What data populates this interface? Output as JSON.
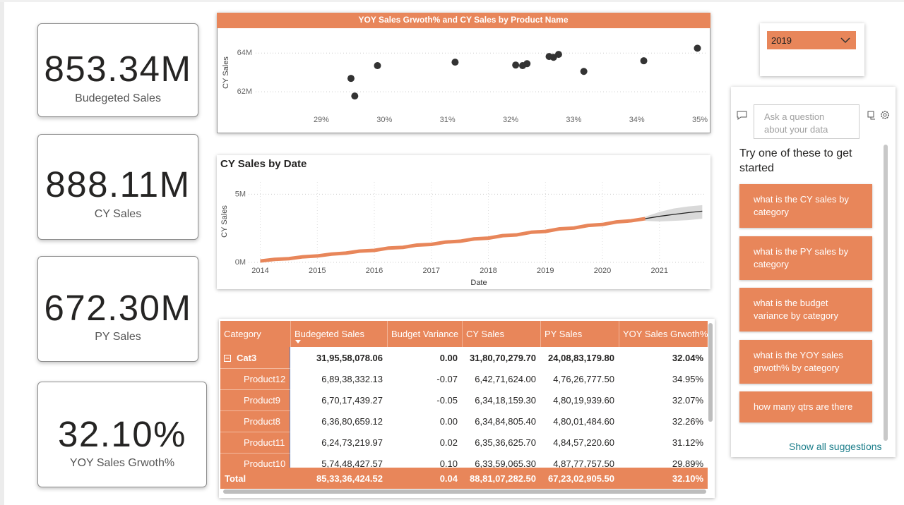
{
  "kpis": [
    {
      "value": "853.34M",
      "label": "Budegeted Sales"
    },
    {
      "value": "888.11M",
      "label": "CY Sales"
    },
    {
      "value": "672.30M",
      "label": "PY Sales"
    },
    {
      "value": "32.10%",
      "label": "YOY Sales Grwoth%"
    }
  ],
  "chart_data": [
    {
      "type": "scatter",
      "title": "YOY Sales Grwoth% and CY Sales by Product Name",
      "title_background": "#e8865a",
      "y_label": "CY Sales",
      "color": "#333333",
      "grid": true,
      "x": [
        29.47,
        29.53,
        29.89,
        31.12,
        32.08,
        32.19,
        32.26,
        32.61,
        32.68,
        32.76,
        33.16,
        34.11,
        34.96
      ],
      "values": [
        62.69,
        61.78,
        63.35,
        63.53,
        63.38,
        63.35,
        63.45,
        63.82,
        63.78,
        63.93,
        63.05,
        63.6,
        64.25
      ],
      "xlim": [
        27.4,
        35.1
      ],
      "xticks": [
        {
          "value": 29,
          "label": "29%"
        },
        {
          "value": 30,
          "label": "30%"
        },
        {
          "value": 31,
          "label": "31%"
        },
        {
          "value": 32,
          "label": "32%"
        },
        {
          "value": 33,
          "label": "33%"
        },
        {
          "value": 34,
          "label": "34%"
        },
        {
          "value": 35,
          "label": "35%"
        }
      ],
      "ylim": [
        60,
        65.1
      ],
      "yticks": [
        {
          "value": 62,
          "label": "62M"
        },
        {
          "value": 64,
          "label": "64M"
        }
      ]
    },
    {
      "type": "line",
      "title": "CY Sales by Date",
      "x_label": "Date",
      "y_label": "CY Sales",
      "color": "#e8865a",
      "grid": true,
      "x": [
        2014,
        2014.25,
        2014.5,
        2014.75,
        2015,
        2015.25,
        2015.5,
        2015.75,
        2016,
        2016.25,
        2016.5,
        2016.75,
        2017,
        2017.25,
        2017.5,
        2017.75,
        2018,
        2018.25,
        2018.5,
        2018.75,
        2019,
        2019.25,
        2019.5,
        2019.75,
        2020,
        2020.25,
        2020.5,
        2020.75
      ],
      "values": [
        0.1,
        0.22,
        0.27,
        0.41,
        0.47,
        0.61,
        0.68,
        0.83,
        0.88,
        1.05,
        1.1,
        1.27,
        1.32,
        1.49,
        1.55,
        1.72,
        1.78,
        1.96,
        2.02,
        2.21,
        2.27,
        2.46,
        2.52,
        2.71,
        2.78,
        2.97,
        3.05,
        3.21
      ],
      "forecast": {
        "color": "#222222",
        "band_color": "#cfcfcf",
        "x": [
          2020.75,
          2021,
          2021.25,
          2021.5,
          2021.75
        ],
        "values": [
          3.21,
          3.38,
          3.52,
          3.65,
          3.76
        ],
        "lower": [
          3.05,
          3.0,
          3.05,
          3.1,
          3.2
        ],
        "upper": [
          3.35,
          3.7,
          3.95,
          4.1,
          4.2
        ]
      },
      "xlim": [
        2013.3,
        2021.82
      ],
      "xticks": [
        2014,
        2015,
        2016,
        2017,
        2018,
        2019,
        2020,
        2021
      ],
      "ylim": [
        0,
        5.9
      ],
      "yticks": [
        {
          "value": 0,
          "label": "0M"
        },
        {
          "value": 5,
          "label": "5M"
        }
      ]
    }
  ],
  "table": {
    "headers": [
      "Category",
      "Budegeted Sales",
      "Budget Variance",
      "CY Sales",
      "PY Sales",
      "YOY Sales Grwoth%"
    ],
    "group": [
      "Cat3",
      "31,95,58,078.06",
      "0.00",
      "31,80,70,279.70",
      "24,08,83,179.80",
      "32.04%"
    ],
    "rows": [
      [
        "Product12",
        "6,89,38,332.13",
        "-0.07",
        "6,42,71,624.00",
        "4,76,26,777.50",
        "34.95%"
      ],
      [
        "Product9",
        "6,70,17,439.27",
        "-0.05",
        "6,34,18,159.30",
        "4,80,19,939.60",
        "32.07%"
      ],
      [
        "Product8",
        "6,36,80,659.12",
        "0.00",
        "6,34,84,805.40",
        "4,80,01,484.60",
        "32.26%"
      ],
      [
        "Product11",
        "6,24,73,219.97",
        "0.02",
        "6,35,36,625.70",
        "4,84,57,220.60",
        "31.12%"
      ],
      [
        "Product10",
        "5,74,48,427.57",
        "0.10",
        "6,33,59,065.30",
        "4,87,77,757.50",
        "29.89%"
      ]
    ],
    "total": [
      "Total",
      "85,33,36,424.52",
      "0.04",
      "88,81,07,282.50",
      "67,23,02,905.50",
      "32.10%"
    ]
  },
  "slicer": {
    "selected": "2019"
  },
  "qna": {
    "placeholder": "Ask a question about your data",
    "prompt": "Try one of these to get started",
    "suggestions": [
      "what is the CY sales by category",
      "what is the PY sales by category",
      "what is the budget variance by category",
      "what is the YOY sales grwoth% by category",
      "how many qtrs are there"
    ],
    "show_all": "Show all suggestions"
  }
}
